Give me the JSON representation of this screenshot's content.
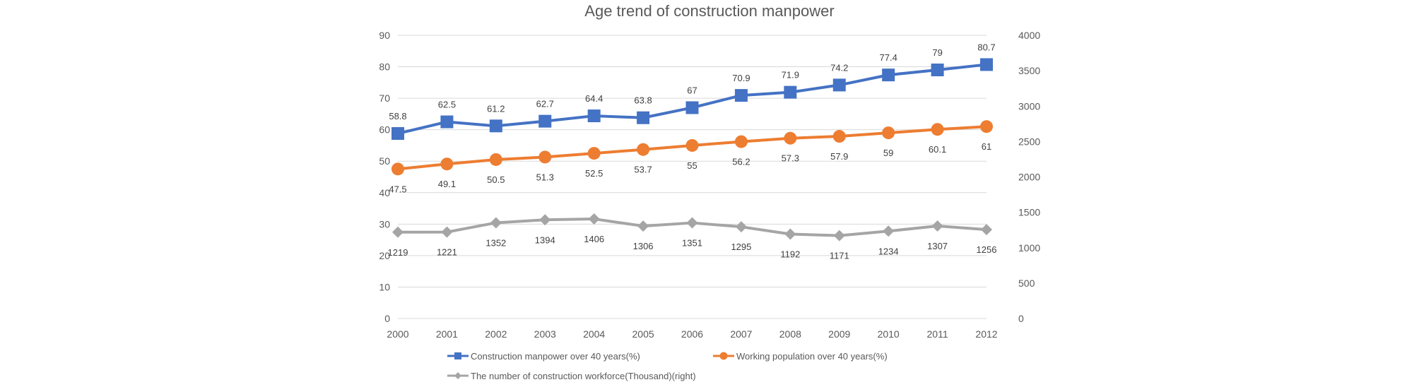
{
  "chart_data": {
    "type": "line",
    "title": "Age trend of construction manpower",
    "categories": [
      "2000",
      "2001",
      "2002",
      "2003",
      "2004",
      "2005",
      "2006",
      "2007",
      "2008",
      "2009",
      "2010",
      "2011",
      "2012"
    ],
    "y_left": {
      "min": 0,
      "max": 90,
      "step": 10,
      "ticks": [
        "0",
        "10",
        "20",
        "30",
        "40",
        "50",
        "60",
        "70",
        "80",
        "90"
      ]
    },
    "y_right": {
      "min": 0,
      "max": 4000,
      "step": 500,
      "ticks": [
        "0",
        "500",
        "1000",
        "1500",
        "2000",
        "2500",
        "3000",
        "3500",
        "4000"
      ]
    },
    "grid": true,
    "legend_position": "bottom",
    "series": [
      {
        "name": "Construction manpower over 40 years(%)",
        "axis": "left",
        "color": "#4472c4",
        "marker": "square",
        "label_pos": "above",
        "values": [
          58.8,
          62.5,
          61.2,
          62.7,
          64.4,
          63.8,
          67,
          70.9,
          71.9,
          74.2,
          77.4,
          79,
          80.7
        ],
        "labels": [
          "58.8",
          "62.5",
          "61.2",
          "62.7",
          "64.4",
          "63.8",
          "67",
          "70.9",
          "71.9",
          "74.2",
          "77.4",
          "79",
          "80.7"
        ]
      },
      {
        "name": "Working population over 40 years(%)",
        "axis": "left",
        "color": "#ed7d31",
        "marker": "circle",
        "label_pos": "below",
        "values": [
          47.5,
          49.1,
          50.5,
          51.3,
          52.5,
          53.7,
          55,
          56.2,
          57.3,
          57.9,
          59,
          60.1,
          61
        ],
        "labels": [
          "47.5",
          "49.1",
          "50.5",
          "51.3",
          "52.5",
          "53.7",
          "55",
          "56.2",
          "57.3",
          "57.9",
          "59",
          "60.1",
          "61"
        ]
      },
      {
        "name": "The number of construction workforce(Thousand)(right)",
        "axis": "right",
        "color": "#a5a5a5",
        "marker": "diamond",
        "label_pos": "below",
        "values": [
          1219,
          1221,
          1352,
          1394,
          1406,
          1306,
          1351,
          1295,
          1192,
          1171,
          1234,
          1307,
          1256
        ],
        "labels": [
          "1219",
          "1221",
          "1352",
          "1394",
          "1406",
          "1306",
          "1351",
          "1295",
          "1192",
          "1171",
          "1234",
          "1307",
          "1256"
        ]
      }
    ]
  }
}
